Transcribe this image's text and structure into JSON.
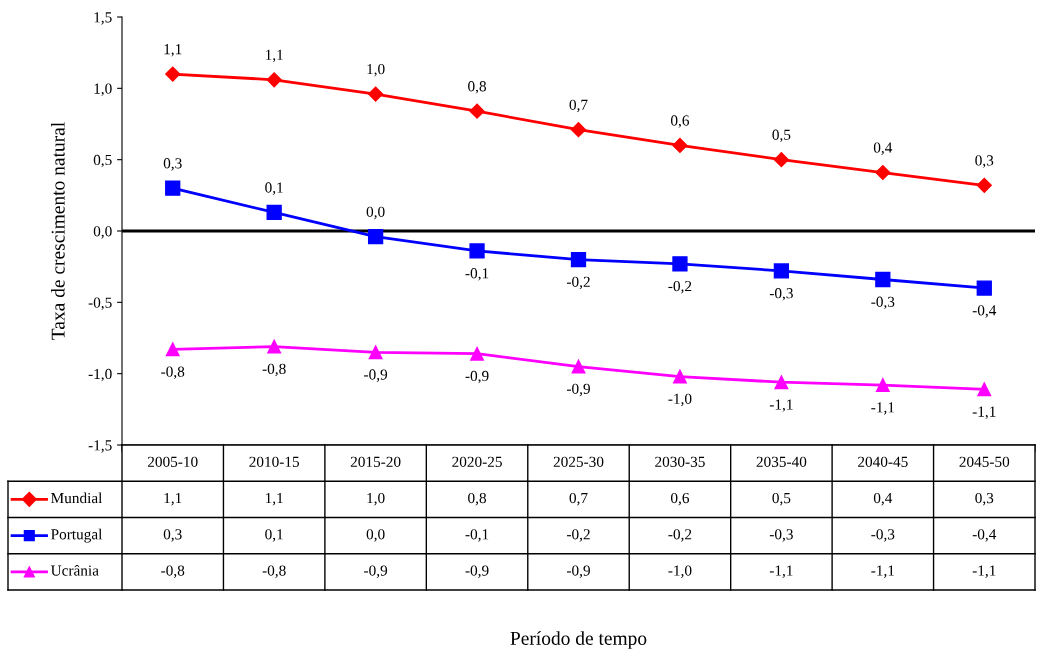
{
  "chart_data": {
    "type": "line",
    "annotations": [
      "Período de tempo"
    ],
    "ylabel": "Taxa de crescimento natural",
    "categories": [
      "2005-10",
      "2010-15",
      "2015-20",
      "2020-25",
      "2025-30",
      "2030-35",
      "2035-40",
      "2040-45",
      "2045-50"
    ],
    "series": [
      {
        "name": "Mundial",
        "color": "#ff0000",
        "marker": "diamond",
        "values": [
          1.1,
          1.06,
          0.96,
          0.84,
          0.71,
          0.6,
          0.5,
          0.41,
          0.32
        ],
        "value_labels": [
          "1,1",
          "1,1",
          "1,0",
          "0,8",
          "0,7",
          "0,6",
          "0,5",
          "0,4",
          "0,3"
        ]
      },
      {
        "name": "Portugal",
        "color": "#0000ff",
        "marker": "square",
        "values": [
          0.3,
          0.13,
          -0.04,
          -0.14,
          -0.2,
          -0.23,
          -0.28,
          -0.34,
          -0.4
        ],
        "value_labels": [
          "0,3",
          "0,1",
          "0,0",
          "-0,1",
          "-0,2",
          "-0,2",
          "-0,3",
          "-0,3",
          "-0,4"
        ]
      },
      {
        "name": "Ucrânia",
        "color": "#ff00ff",
        "marker": "triangle",
        "values": [
          -0.83,
          -0.81,
          -0.85,
          -0.86,
          -0.95,
          -1.02,
          -1.06,
          -1.08,
          -1.11
        ],
        "value_labels": [
          "-0,8",
          "-0,8",
          "-0,9",
          "-0,9",
          "-0,9",
          "-1,0",
          "-1,1",
          "-1,1",
          "-1,1"
        ]
      }
    ],
    "ylim": [
      -1.5,
      1.5
    ],
    "yticks": [
      {
        "value": -1.5,
        "label": "-1,5"
      },
      {
        "value": -1.0,
        "label": "-1,0"
      },
      {
        "value": -0.5,
        "label": "-0,5"
      },
      {
        "value": 0,
        "label": "0,0"
      },
      {
        "value": 0.5,
        "label": "0,5"
      },
      {
        "value": 1.0,
        "label": "1,0"
      },
      {
        "value": 1.5,
        "label": "1,5"
      }
    ],
    "ref_lines": [
      {
        "axis": "y",
        "value": 0,
        "color": "#000000"
      }
    ],
    "line_style": "solid",
    "grid": false,
    "legend": "bottom left"
  }
}
